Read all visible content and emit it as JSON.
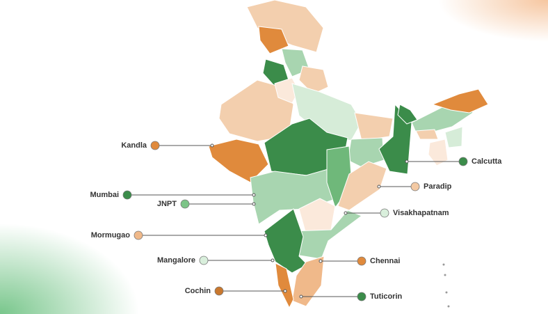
{
  "ports": [
    {
      "label": "Kandla",
      "color": "#e08a3c"
    },
    {
      "label": "Mumbai",
      "color": "#3b8c4a"
    },
    {
      "label": "JNPT",
      "color": "#7cc487"
    },
    {
      "label": "Mormugao",
      "color": "#f0b98a"
    },
    {
      "label": "Mangalore",
      "color": "#d9efdc"
    },
    {
      "label": "Cochin",
      "color": "#c9782e"
    },
    {
      "label": "Calcutta",
      "color": "#3b8c4a"
    },
    {
      "label": "Paradip",
      "color": "#f3c9a3"
    },
    {
      "label": "Visakhapatnam",
      "color": "#d9efdc"
    },
    {
      "label": "Chennai",
      "color": "#e08a3c"
    },
    {
      "label": "Tuticorin",
      "color": "#3b8c4a"
    }
  ]
}
